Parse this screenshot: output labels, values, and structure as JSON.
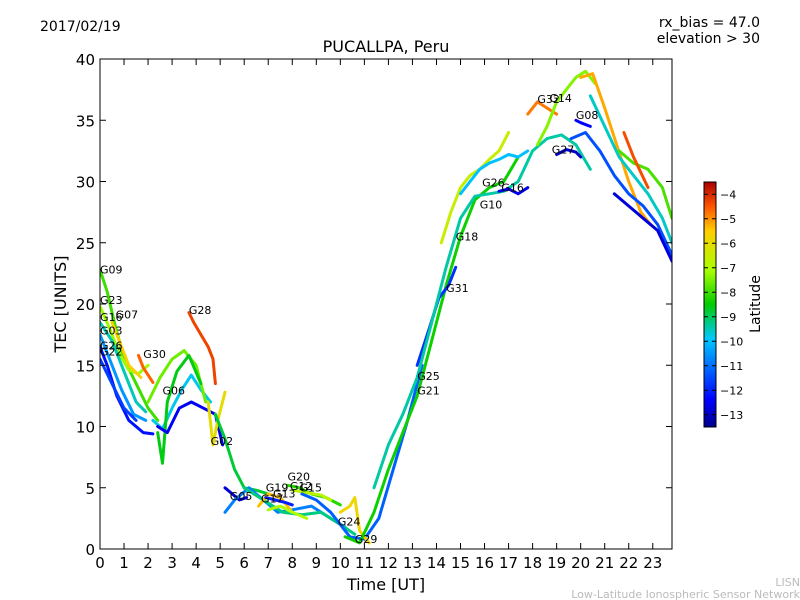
{
  "header": {
    "date": "2017/02/19",
    "rx_bias": "rx_bias = 47.0",
    "elevation": "elevation > 30"
  },
  "footer": {
    "org_short": "LISN",
    "org_full": "Low-Latitude Ionospheric Sensor Network"
  },
  "chart_data": {
    "type": "line",
    "title": "PUCALLPA, Peru",
    "xlabel": "Time [UT]",
    "ylabel": "TEC [UNITS]",
    "xlim": [
      0,
      23.8
    ],
    "ylim": [
      0,
      40
    ],
    "x_ticks": [
      0,
      1,
      2,
      3,
      4,
      5,
      6,
      7,
      8,
      9,
      10,
      11,
      12,
      13,
      14,
      15,
      16,
      17,
      18,
      19,
      20,
      21,
      22,
      23
    ],
    "y_ticks": [
      0,
      5,
      10,
      15,
      20,
      25,
      30,
      35,
      40
    ],
    "colorbar": {
      "label": "Latitude",
      "range": [
        -13.5,
        -3.5
      ],
      "ticks": [
        -4,
        -5,
        -6,
        -7,
        -8,
        -9,
        -10,
        -11,
        -12,
        -13
      ]
    },
    "colors": {
      "low": "#00008b",
      "mid": "#00cc00",
      "high": "#cc0000"
    },
    "series": [
      {
        "name": "G09",
        "lat": -8.0,
        "x": [
          0,
          0.3,
          0.6,
          1.0,
          1.5,
          2.0,
          2.4
        ],
        "y": [
          22.8,
          21,
          18.5,
          15.5,
          13.5,
          11.5,
          10.5
        ]
      },
      {
        "name": "G23",
        "lat": -7.2,
        "x": [
          0,
          0.4,
          0.8,
          1.2,
          1.6,
          2.0
        ],
        "y": [
          19.8,
          18.0,
          16.0,
          14.6,
          14.3,
          15.0
        ]
      },
      {
        "name": "G16",
        "lat": -9.5,
        "x": [
          0,
          0.5,
          1.0,
          1.5,
          1.9
        ],
        "y": [
          18.5,
          17.0,
          14.5,
          12.0,
          11.2
        ]
      },
      {
        "name": "G07",
        "lat": -5.6,
        "x": [
          0.5,
          0.8,
          1.2,
          1.7
        ],
        "y": [
          18.5,
          17.0,
          15.0,
          14.0
        ]
      },
      {
        "name": "G03",
        "lat": -10.5,
        "x": [
          0,
          0.4,
          0.9,
          1.4,
          1.9
        ],
        "y": [
          17.5,
          15.5,
          13.0,
          11.0,
          10.5
        ]
      },
      {
        "name": "G26",
        "lat": -12.2,
        "x": [
          0,
          0.3,
          0.7,
          1.2,
          1.8,
          2.2
        ],
        "y": [
          16.5,
          15.0,
          12.5,
          10.5,
          9.5,
          9.4
        ]
      },
      {
        "name": "G22",
        "lat": -11.6,
        "x": [
          0,
          0.5,
          1.0,
          1.5
        ],
        "y": [
          15.5,
          13.5,
          11.5,
          10.5
        ]
      },
      {
        "name": "G30",
        "lat": -4.6,
        "x": [
          1.6,
          1.8,
          2.0,
          2.2
        ],
        "y": [
          15.8,
          14.8,
          14.2,
          13.6
        ]
      },
      {
        "name": "G06",
        "lat": -9.8,
        "x": [
          2.2,
          2.6,
          3.0,
          3.4,
          3.8,
          4.2,
          4.6
        ],
        "y": [
          10.5,
          9.8,
          11.5,
          13.0,
          14.2,
          13.0,
          12.0
        ]
      },
      {
        "name": "G11",
        "lat": -7.6,
        "x": [
          2.0,
          2.5,
          3.0,
          3.5,
          4.0,
          4.4
        ],
        "y": [
          12.0,
          14.0,
          15.5,
          16.2,
          15.0,
          12.0
        ]
      },
      {
        "name": "G10",
        "lat": -8.6,
        "x": [
          2.4,
          2.6,
          2.8,
          3.2,
          3.7,
          4.2
        ],
        "y": [
          9.5,
          7.0,
          12.0,
          14.5,
          15.8,
          13.5
        ]
      },
      {
        "name": "G01",
        "lat": -12.5,
        "x": [
          2.4,
          2.8,
          3.3,
          3.8,
          4.3,
          4.8,
          5.1
        ],
        "y": [
          10.0,
          9.5,
          11.5,
          12.0,
          11.5,
          11.0,
          8.5
        ]
      },
      {
        "name": "G28",
        "lat": -4.3,
        "x": [
          3.7,
          3.9,
          4.2,
          4.5,
          4.7,
          4.8
        ],
        "y": [
          19.3,
          18.5,
          17.5,
          16.5,
          15.5,
          13.5
        ]
      },
      {
        "name": "G02",
        "lat": -6.0,
        "x": [
          4.5,
          4.7,
          4.9,
          5.2
        ],
        "y": [
          12.0,
          8.5,
          10.5,
          12.8
        ]
      },
      {
        "name": "G18",
        "lat": -8.8,
        "x": [
          4.8,
          5.2,
          5.6,
          6.0,
          6.5,
          7.0
        ],
        "y": [
          11.0,
          9.0,
          6.5,
          5.0,
          4.8,
          4.5
        ]
      },
      {
        "name": "G05",
        "lat": -12.8,
        "x": [
          5.2,
          5.5,
          5.8,
          6.1
        ],
        "y": [
          5.0,
          4.5,
          4.0,
          4.2
        ]
      },
      {
        "name": "G24",
        "lat": -10.8,
        "x": [
          5.2,
          5.6,
          6.2,
          6.8,
          7.4,
          8.0,
          8.8,
          9.6,
          10.2
        ],
        "y": [
          3.0,
          4.0,
          5.0,
          4.0,
          3.0,
          3.2,
          3.5,
          2.5,
          1.8
        ]
      },
      {
        "name": "G15",
        "lat": -9.2,
        "x": [
          6.0,
          6.8,
          7.6,
          8.4,
          9.2,
          10.0,
          10.6
        ],
        "y": [
          5.0,
          4.0,
          3.0,
          2.8,
          3.0,
          2.0,
          1.2
        ]
      },
      {
        "name": "G19",
        "lat": -5.4,
        "x": [
          6.6,
          7.0,
          7.5,
          8.0
        ],
        "y": [
          3.5,
          4.5,
          4.2,
          3.0
        ]
      },
      {
        "name": "G17",
        "lat": -12.0,
        "x": [
          6.9,
          7.3,
          7.7,
          8.0
        ],
        "y": [
          4.2,
          4.0,
          3.8,
          3.6
        ]
      },
      {
        "name": "G13",
        "lat": -7.0,
        "x": [
          7.0,
          7.5,
          8.0,
          8.6
        ],
        "y": [
          3.2,
          3.5,
          3.0,
          2.5
        ]
      },
      {
        "name": "G20",
        "lat": -8.2,
        "x": [
          7.8,
          8.3,
          8.8,
          9.4,
          10.0
        ],
        "y": [
          5.2,
          5.0,
          4.5,
          4.2,
          3.6
        ]
      },
      {
        "name": "G12",
        "lat": -6.8,
        "x": [
          8.0,
          8.6,
          9.2,
          9.6
        ],
        "y": [
          4.8,
          4.6,
          4.4,
          4.0
        ]
      },
      {
        "name": "G25",
        "lat": -11.2,
        "x": [
          8.4,
          9.0,
          9.6,
          10.4,
          11.0,
          11.6,
          12.2,
          12.8,
          13.4
        ],
        "y": [
          4.5,
          4.0,
          3.0,
          1.0,
          0.8,
          2.5,
          6.5,
          10.5,
          15.0
        ]
      },
      {
        "name": "G29",
        "lat": -5.8,
        "x": [
          10.0,
          10.4,
          10.6,
          10.8,
          11.2
        ],
        "y": [
          3.0,
          3.5,
          4.2,
          1.5,
          0.5
        ]
      },
      {
        "name": "G21",
        "lat": -8.4,
        "x": [
          10.2,
          10.8,
          11.4,
          12.0,
          12.6,
          13.2,
          13.8,
          14.4,
          15.0,
          15.6,
          16.2,
          16.8,
          17.4
        ],
        "y": [
          1.0,
          0.5,
          3.0,
          6.5,
          9.5,
          12.5,
          17.0,
          21.5,
          25.5,
          28.5,
          29.5,
          30.0,
          32.0
        ]
      },
      {
        "name": "G31",
        "lat": -11.8,
        "x": [
          13.2,
          13.7,
          14.1,
          14.5,
          14.8
        ],
        "y": [
          15.0,
          18.0,
          20.5,
          21.5,
          23.0
        ]
      },
      {
        "name": "G27",
        "lat": -9.4,
        "x": [
          11.4,
          12.0,
          12.6,
          13.2,
          13.8,
          14.4,
          15.0,
          15.6,
          16.2,
          16.8,
          17.4,
          18.0,
          18.6,
          19.2,
          19.8,
          20.4
        ],
        "y": [
          5.0,
          8.5,
          11.0,
          14.0,
          18.5,
          23.0,
          27.0,
          28.8,
          29.0,
          29.2,
          30.0,
          32.5,
          33.5,
          33.8,
          33.0,
          31.0
        ]
      },
      {
        "name": "G10b",
        "lat": -6.6,
        "x": [
          14.2,
          14.6,
          15.0,
          15.4,
          15.8,
          16.2,
          16.6,
          17.0
        ],
        "y": [
          25.0,
          27.5,
          29.5,
          30.5,
          31.0,
          31.8,
          32.5,
          34.0
        ]
      },
      {
        "name": "G26b",
        "lat": -10.0,
        "x": [
          15.0,
          15.4,
          15.8,
          16.2,
          16.6,
          17.0,
          17.4,
          17.8
        ],
        "y": [
          29.0,
          30.0,
          31.0,
          31.5,
          31.8,
          32.2,
          32.0,
          32.5
        ]
      },
      {
        "name": "G16b",
        "lat": -12.6,
        "x": [
          16.6,
          17.0,
          17.4,
          17.8
        ],
        "y": [
          29.2,
          29.4,
          29.0,
          29.5
        ]
      },
      {
        "name": "G32",
        "lat": -4.8,
        "x": [
          17.8,
          18.2,
          18.6,
          19.0
        ],
        "y": [
          35.5,
          36.5,
          36.0,
          35.5
        ]
      },
      {
        "name": "G14",
        "lat": -7.4,
        "x": [
          18.2,
          18.6,
          19.0,
          19.4,
          19.8,
          20.2,
          20.6
        ],
        "y": [
          33.0,
          34.5,
          36.5,
          37.5,
          38.5,
          39.0,
          38.0
        ]
      },
      {
        "name": "G27b",
        "lat": -12.9,
        "x": [
          19.0,
          19.4,
          19.8,
          20.0
        ],
        "y": [
          32.2,
          32.6,
          32.4,
          32.0
        ]
      },
      {
        "name": "G08",
        "lat": -12.4,
        "x": [
          19.8,
          20.0,
          20.4
        ],
        "y": [
          35.0,
          34.8,
          34.5
        ]
      },
      {
        "name": "G32b",
        "lat": -5.2,
        "x": [
          20.0,
          20.5,
          21.0,
          21.5,
          22.0,
          22.5,
          22.9
        ],
        "y": [
          38.5,
          38.8,
          36.0,
          33.0,
          30.0,
          27.5,
          26.5
        ]
      },
      {
        "name": "G14b",
        "lat": -9.6,
        "x": [
          20.4,
          21.0,
          21.6,
          22.2,
          22.8,
          23.4,
          23.8
        ],
        "y": [
          37.0,
          34.5,
          32.0,
          30.5,
          29.0,
          27.0,
          25.0
        ]
      },
      {
        "name": "G08b",
        "lat": -11.4,
        "x": [
          19.6,
          20.2,
          20.8,
          21.4,
          22.0,
          22.6,
          23.2,
          23.8
        ],
        "y": [
          33.5,
          34.0,
          32.5,
          30.5,
          29.0,
          28.0,
          26.5,
          24.0
        ]
      },
      {
        "name": "G18b",
        "lat": -12.7,
        "x": [
          21.4,
          22.0,
          22.6,
          23.2,
          23.8
        ],
        "y": [
          29.0,
          28.0,
          27.0,
          26.0,
          23.5
        ]
      },
      {
        "name": "G31b",
        "lat": -7.9,
        "x": [
          21.6,
          22.2,
          22.8,
          23.4,
          23.8
        ],
        "y": [
          32.5,
          31.5,
          31.0,
          29.5,
          27.0
        ]
      },
      {
        "name": "G21b",
        "lat": -4.4,
        "x": [
          21.8,
          22.2,
          22.8
        ],
        "y": [
          34.0,
          32.0,
          29.5
        ]
      }
    ],
    "annotations": [
      {
        "text": "G09",
        "x": 0.0,
        "y": 22.5
      },
      {
        "text": "G23",
        "x": 0.0,
        "y": 20.0
      },
      {
        "text": "G16",
        "x": 0.0,
        "y": 18.6
      },
      {
        "text": "G07",
        "x": 0.65,
        "y": 18.8
      },
      {
        "text": "G03",
        "x": 0.0,
        "y": 17.5
      },
      {
        "text": "G26",
        "x": 0.0,
        "y": 16.3
      },
      {
        "text": "G22",
        "x": 0.0,
        "y": 15.8
      },
      {
        "text": "G30",
        "x": 1.8,
        "y": 15.6
      },
      {
        "text": "G28",
        "x": 3.7,
        "y": 19.2
      },
      {
        "text": "G06",
        "x": 2.6,
        "y": 12.6
      },
      {
        "text": "G02",
        "x": 4.6,
        "y": 8.5
      },
      {
        "text": "G05",
        "x": 5.4,
        "y": 4.0
      },
      {
        "text": "G17",
        "x": 6.7,
        "y": 3.8
      },
      {
        "text": "G13",
        "x": 7.2,
        "y": 4.2
      },
      {
        "text": "G19",
        "x": 6.9,
        "y": 4.7
      },
      {
        "text": "G20",
        "x": 7.8,
        "y": 5.6
      },
      {
        "text": "G12",
        "x": 7.9,
        "y": 4.8
      },
      {
        "text": "G15",
        "x": 8.3,
        "y": 4.7
      },
      {
        "text": "G24",
        "x": 9.9,
        "y": 1.9
      },
      {
        "text": "G29",
        "x": 10.6,
        "y": 0.5
      },
      {
        "text": "G25",
        "x": 13.2,
        "y": 13.8
      },
      {
        "text": "G21",
        "x": 13.2,
        "y": 12.6
      },
      {
        "text": "G31",
        "x": 14.4,
        "y": 21.0
      },
      {
        "text": "G18",
        "x": 14.8,
        "y": 25.2
      },
      {
        "text": "G10",
        "x": 15.8,
        "y": 27.8
      },
      {
        "text": "G26",
        "x": 15.9,
        "y": 29.6
      },
      {
        "text": "G16",
        "x": 16.7,
        "y": 29.2
      },
      {
        "text": "G32",
        "x": 18.2,
        "y": 36.4
      },
      {
        "text": "G14",
        "x": 18.7,
        "y": 36.5
      },
      {
        "text": "G08",
        "x": 19.8,
        "y": 35.1
      },
      {
        "text": "G27",
        "x": 18.8,
        "y": 32.3
      }
    ]
  }
}
